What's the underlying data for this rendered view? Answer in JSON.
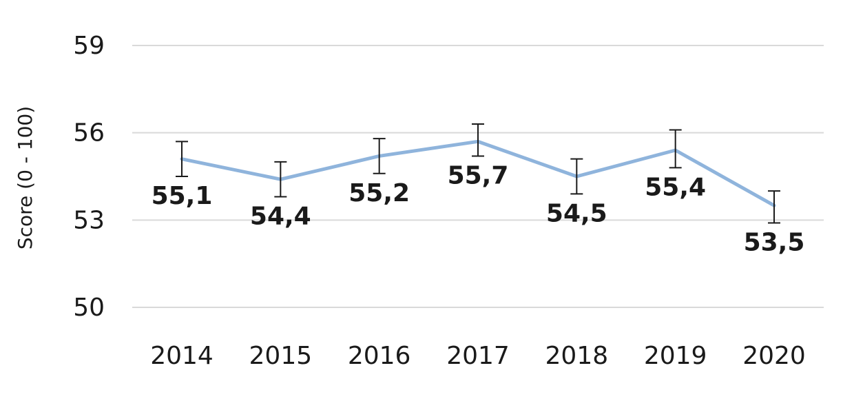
{
  "chart_data": {
    "type": "line",
    "title": "",
    "xlabel": "",
    "ylabel": "Score (0 - 100)",
    "categories": [
      "2014",
      "2015",
      "2016",
      "2017",
      "2018",
      "2019",
      "2020"
    ],
    "series": [
      {
        "values": [
          55.1,
          54.4,
          55.2,
          55.7,
          54.5,
          55.4,
          53.5
        ],
        "error_low": [
          54.5,
          53.8,
          54.6,
          55.2,
          53.9,
          54.8,
          52.9
        ],
        "error_high": [
          55.7,
          55.0,
          55.8,
          56.3,
          55.1,
          56.1,
          54.0
        ],
        "data_labels": [
          "55,1",
          "54,4",
          "55,2",
          "55,7",
          "54,5",
          "55,4",
          "53,5"
        ],
        "color": "#8fb4dc"
      }
    ],
    "ylim": [
      50,
      59
    ],
    "yticks": [
      50,
      53,
      56,
      59
    ],
    "ytick_labels": [
      "50",
      "53",
      "56",
      "59"
    ],
    "grid": true,
    "gridline_color": "#d9d9d9",
    "errorbar_color": "#1a1a1a"
  }
}
